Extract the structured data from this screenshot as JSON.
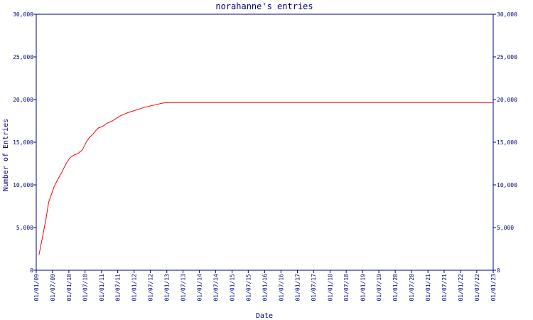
{
  "colors": {
    "axis": "#000080",
    "text": "#000080",
    "line": "#ff0000",
    "background": "#ffffff"
  },
  "chart_data": {
    "type": "line",
    "title": "norahanne's entries",
    "xlabel": "Date",
    "ylabel": "Number of Entries",
    "grid": false,
    "y_right_axis": true,
    "ylim": [
      0,
      30000
    ],
    "y_ticks": [
      0,
      5000,
      10000,
      15000,
      20000,
      25000,
      30000
    ],
    "y_tick_labels": [
      "0",
      "5,000",
      "10,000",
      "15,000",
      "20,000",
      "25,000",
      "30,000"
    ],
    "xlim": [
      "2009-01-01",
      "2023-01-01"
    ],
    "x_ticks": [
      "2009-01-01",
      "2009-07-01",
      "2010-01-01",
      "2010-07-01",
      "2011-01-01",
      "2011-07-01",
      "2012-01-01",
      "2012-07-01",
      "2013-01-01",
      "2013-07-01",
      "2014-01-01",
      "2014-07-01",
      "2015-01-01",
      "2015-07-01",
      "2016-01-01",
      "2016-07-01",
      "2017-01-01",
      "2017-07-01",
      "2018-01-01",
      "2018-07-01",
      "2019-01-01",
      "2019-07-01",
      "2020-01-01",
      "2020-07-01",
      "2021-01-01",
      "2021-07-01",
      "2022-01-01",
      "2022-07-01",
      "2023-01-01"
    ],
    "x_tick_labels": [
      "01/01/09",
      "01/07/09",
      "01/01/10",
      "01/07/10",
      "01/01/11",
      "01/07/11",
      "01/01/12",
      "01/07/12",
      "01/01/13",
      "01/07/13",
      "01/01/14",
      "01/07/14",
      "01/01/15",
      "01/07/15",
      "01/01/16",
      "01/07/16",
      "01/01/17",
      "01/07/17",
      "01/01/18",
      "01/07/18",
      "01/01/19",
      "01/07/19",
      "01/01/20",
      "01/07/20",
      "01/01/21",
      "01/07/21",
      "01/01/22",
      "01/07/22",
      "01/01/23"
    ],
    "series": [
      {
        "x": [
          "2009-02-01",
          "2009-03-10",
          "2009-04-20",
          "2009-05-20",
          "2009-06-20",
          "2009-07-20",
          "2009-09-01",
          "2009-10-15",
          "2009-12-01",
          "2010-01-15",
          "2010-03-01",
          "2010-04-15",
          "2010-06-01",
          "2010-07-15",
          "2010-08-15",
          "2010-10-01",
          "2010-11-01",
          "2010-12-01",
          "2011-01-01",
          "2011-01-20",
          "2011-03-01",
          "2011-05-01",
          "2011-06-15",
          "2011-08-01",
          "2011-09-15",
          "2011-11-01",
          "2012-01-01",
          "2012-03-01",
          "2012-05-01",
          "2012-07-01",
          "2012-09-01",
          "2012-11-01",
          "2012-12-20",
          "2013-01-01",
          "2023-01-01"
        ],
        "values": [
          1800,
          3800,
          6000,
          8000,
          8900,
          9800,
          10700,
          11500,
          12500,
          13200,
          13500,
          13700,
          14100,
          15000,
          15500,
          16000,
          16400,
          16700,
          16800,
          16900,
          17200,
          17500,
          17800,
          18100,
          18300,
          18500,
          18700,
          18900,
          19100,
          19250,
          19400,
          19550,
          19650,
          19650,
          19650
        ]
      }
    ]
  }
}
